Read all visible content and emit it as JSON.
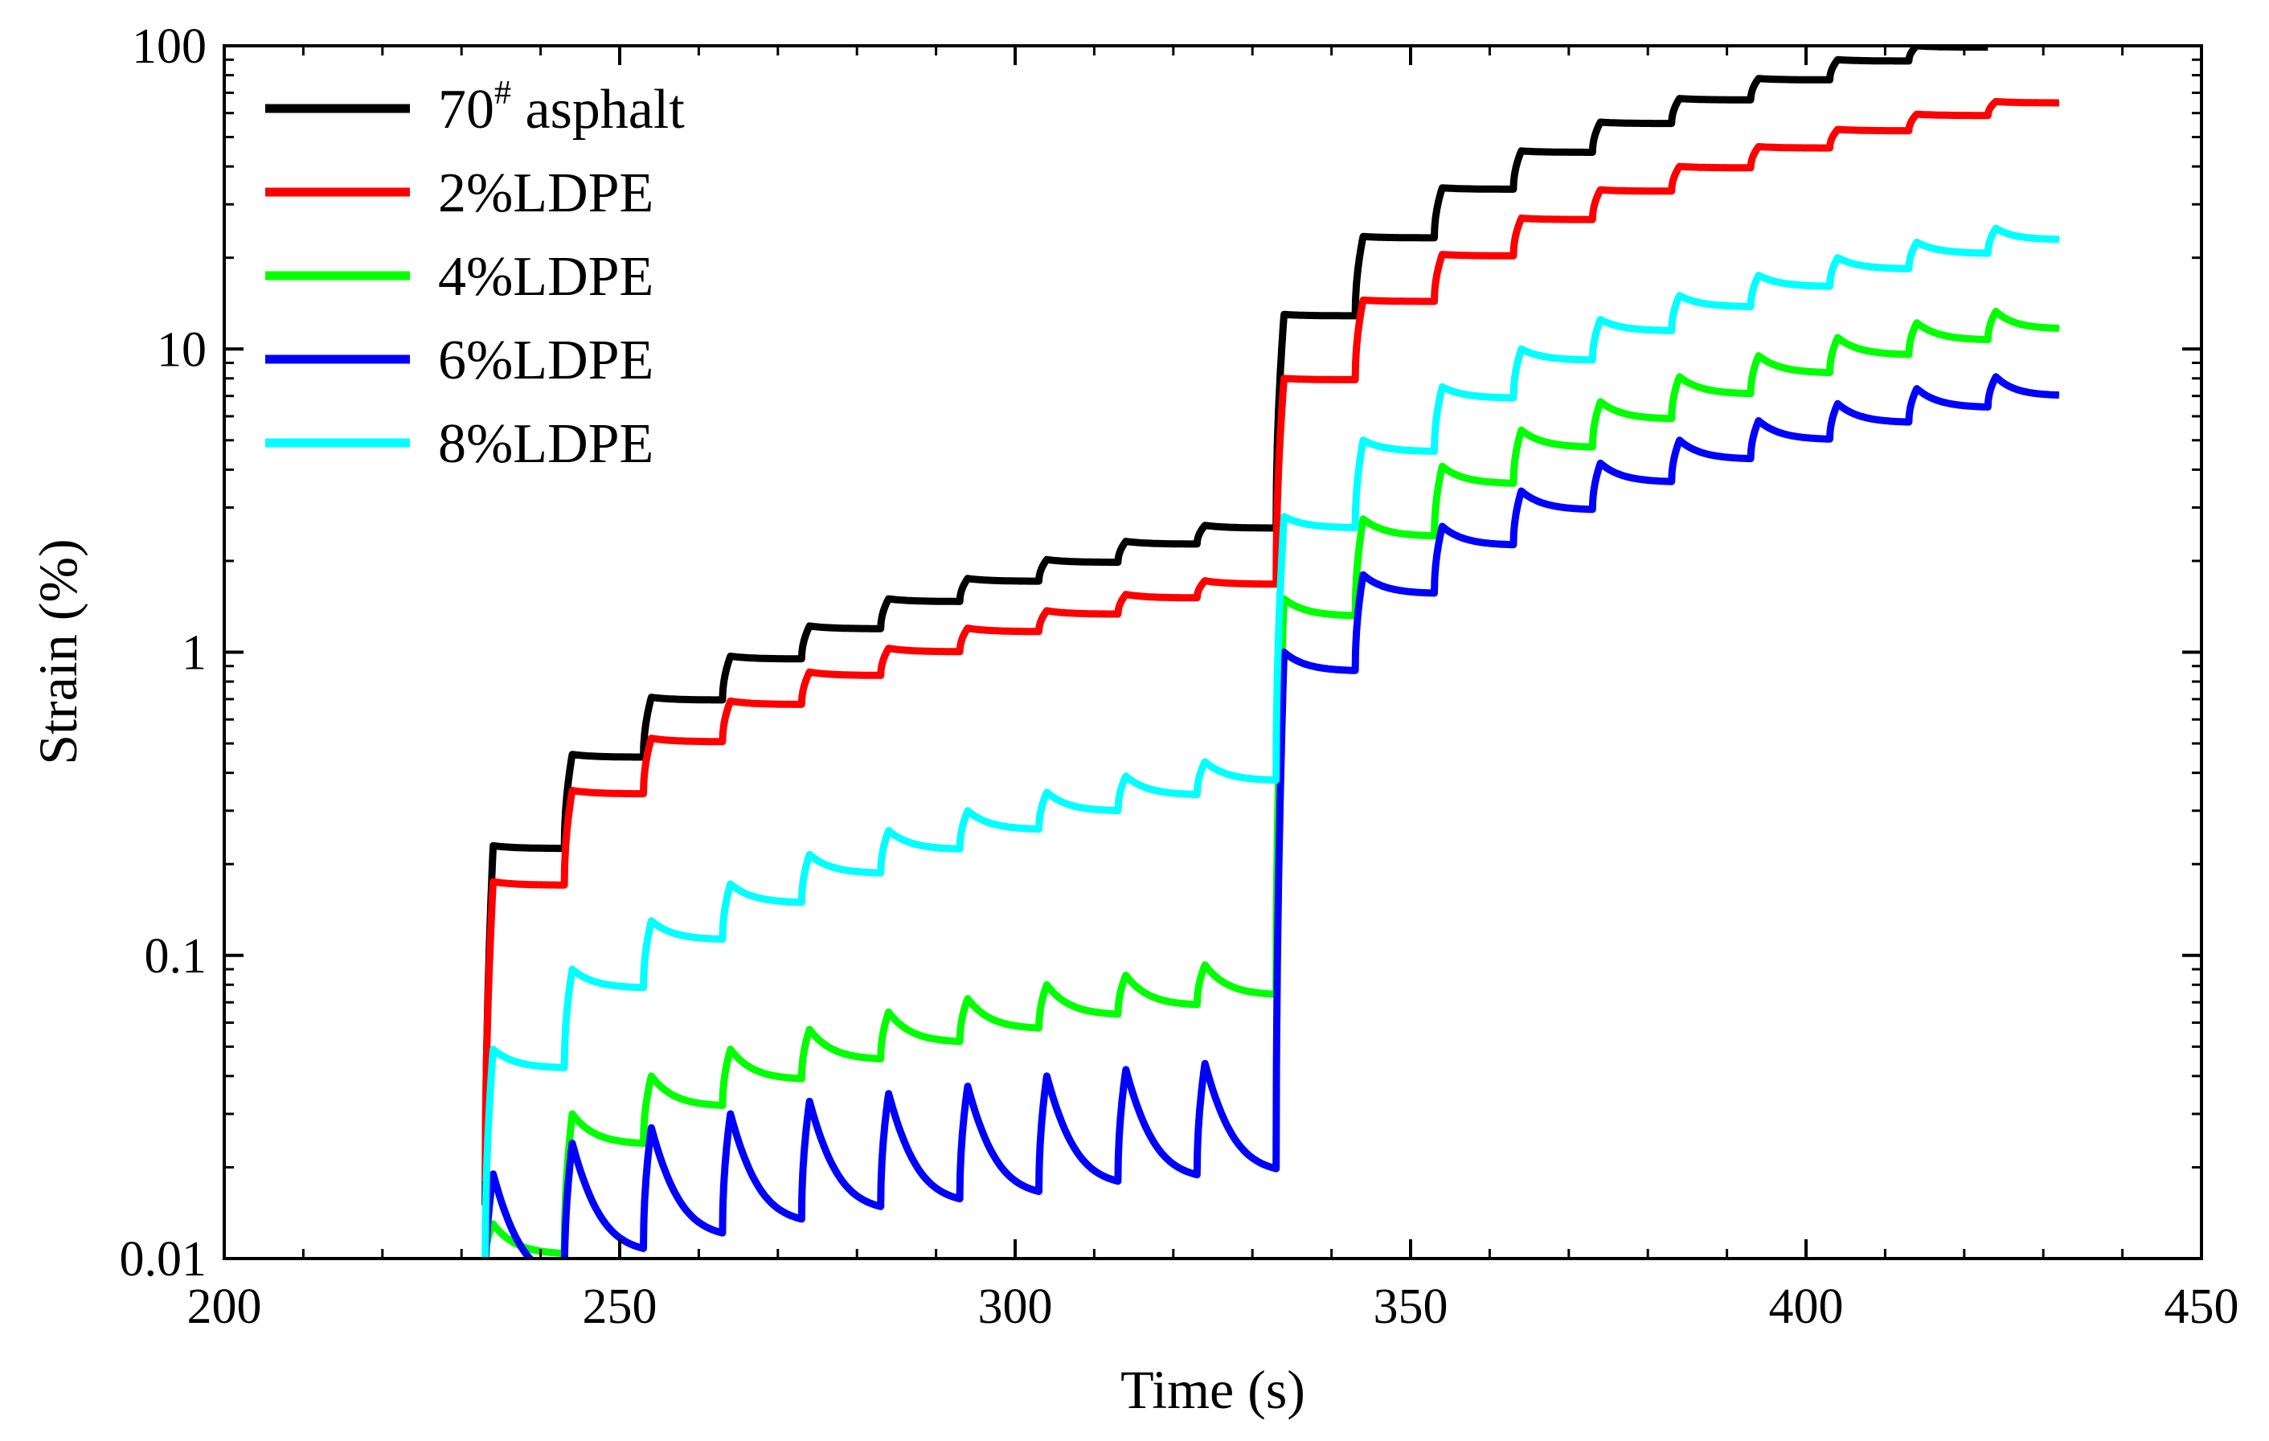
{
  "chart_data": {
    "type": "line",
    "title": "",
    "xlabel": "Time (s)",
    "ylabel": "Strain (%)",
    "xlim": [
      200,
      450
    ],
    "ylim": [
      0.01,
      100
    ],
    "yscale": "log",
    "grid": false,
    "legend_position": "top-left",
    "x_ticks": [
      200,
      250,
      300,
      350,
      400,
      450
    ],
    "x_tick_labels": [
      "200",
      "250",
      "300",
      "350",
      "400",
      "450"
    ],
    "y_ticks": [
      0.01,
      0.1,
      1,
      10,
      100
    ],
    "y_tick_labels": [
      "0.01",
      "0.1",
      "1",
      "10",
      "100"
    ],
    "series": [
      {
        "name": "70",
        "name_sup": "#",
        "name_suffix": " asphalt",
        "color": "#000000",
        "phase1": {
          "plateaus": [
            0.23,
            0.46,
            0.71,
            0.97,
            1.22,
            1.5,
            1.75,
            2.02,
            2.32,
            2.62
          ],
          "rest_decay": 0.02,
          "min": 0.015
        },
        "phase2": {
          "plateaus": [
            13.0,
            23.5,
            34.0,
            45.0,
            56.0,
            67.0,
            78.0,
            90.0,
            100.0,
            100.0
          ],
          "rest_decay": 0.01
        },
        "end_time": 423
      },
      {
        "name": "2%LDPE",
        "color": "#ff0000",
        "phase1": {
          "plateaus": [
            0.175,
            0.35,
            0.52,
            0.69,
            0.86,
            1.03,
            1.2,
            1.37,
            1.55,
            1.72
          ],
          "rest_decay": 0.025,
          "min": 0.018
        },
        "phase2": {
          "plateaus": [
            8.0,
            14.5,
            20.5,
            27.0,
            33.5,
            40.0,
            46.5,
            53.0,
            59.5,
            65.5
          ],
          "rest_decay": 0.01
        },
        "end_time": 432
      },
      {
        "name": "4%LDPE",
        "color": "#00ff00",
        "phase1": {
          "plateaus": [
            0.013,
            0.03,
            0.04,
            0.049,
            0.057,
            0.065,
            0.072,
            0.08,
            0.086,
            0.093
          ],
          "rest_decay": 0.2,
          "min": 0.01
        },
        "phase2": {
          "plateaus": [
            1.5,
            2.75,
            4.1,
            5.4,
            6.7,
            8.1,
            9.5,
            10.9,
            12.2,
            13.3
          ],
          "rest_decay": 0.12
        },
        "end_time": 432
      },
      {
        "name": "6%LDPE",
        "color": "#0000ff",
        "phase1": {
          "plateaus": [
            0.019,
            0.024,
            0.027,
            0.03,
            0.033,
            0.035,
            0.037,
            0.04,
            0.042,
            0.044
          ],
          "rest_decay": 0.55,
          "min": 0.008
        },
        "phase2": {
          "plateaus": [
            1.0,
            1.8,
            2.6,
            3.4,
            4.2,
            5.0,
            5.8,
            6.6,
            7.4,
            8.1
          ],
          "rest_decay": 0.13
        },
        "end_time": 432
      },
      {
        "name": "8%LDPE",
        "color": "#00ffff",
        "phase1": {
          "plateaus": [
            0.049,
            0.09,
            0.13,
            0.172,
            0.215,
            0.258,
            0.3,
            0.345,
            0.39,
            0.435
          ],
          "rest_decay": 0.13,
          "min": 0.01
        },
        "phase2": {
          "plateaus": [
            2.8,
            5.0,
            7.5,
            10.0,
            12.5,
            15.0,
            17.5,
            20.0,
            22.5,
            25.0
          ],
          "rest_decay": 0.08
        },
        "end_time": 432
      }
    ],
    "cycle_start_times": [
      233,
      243,
      253,
      263,
      273,
      283,
      293,
      303,
      313,
      323,
      333,
      343,
      353,
      363,
      373,
      383,
      393,
      403,
      413,
      423
    ]
  }
}
